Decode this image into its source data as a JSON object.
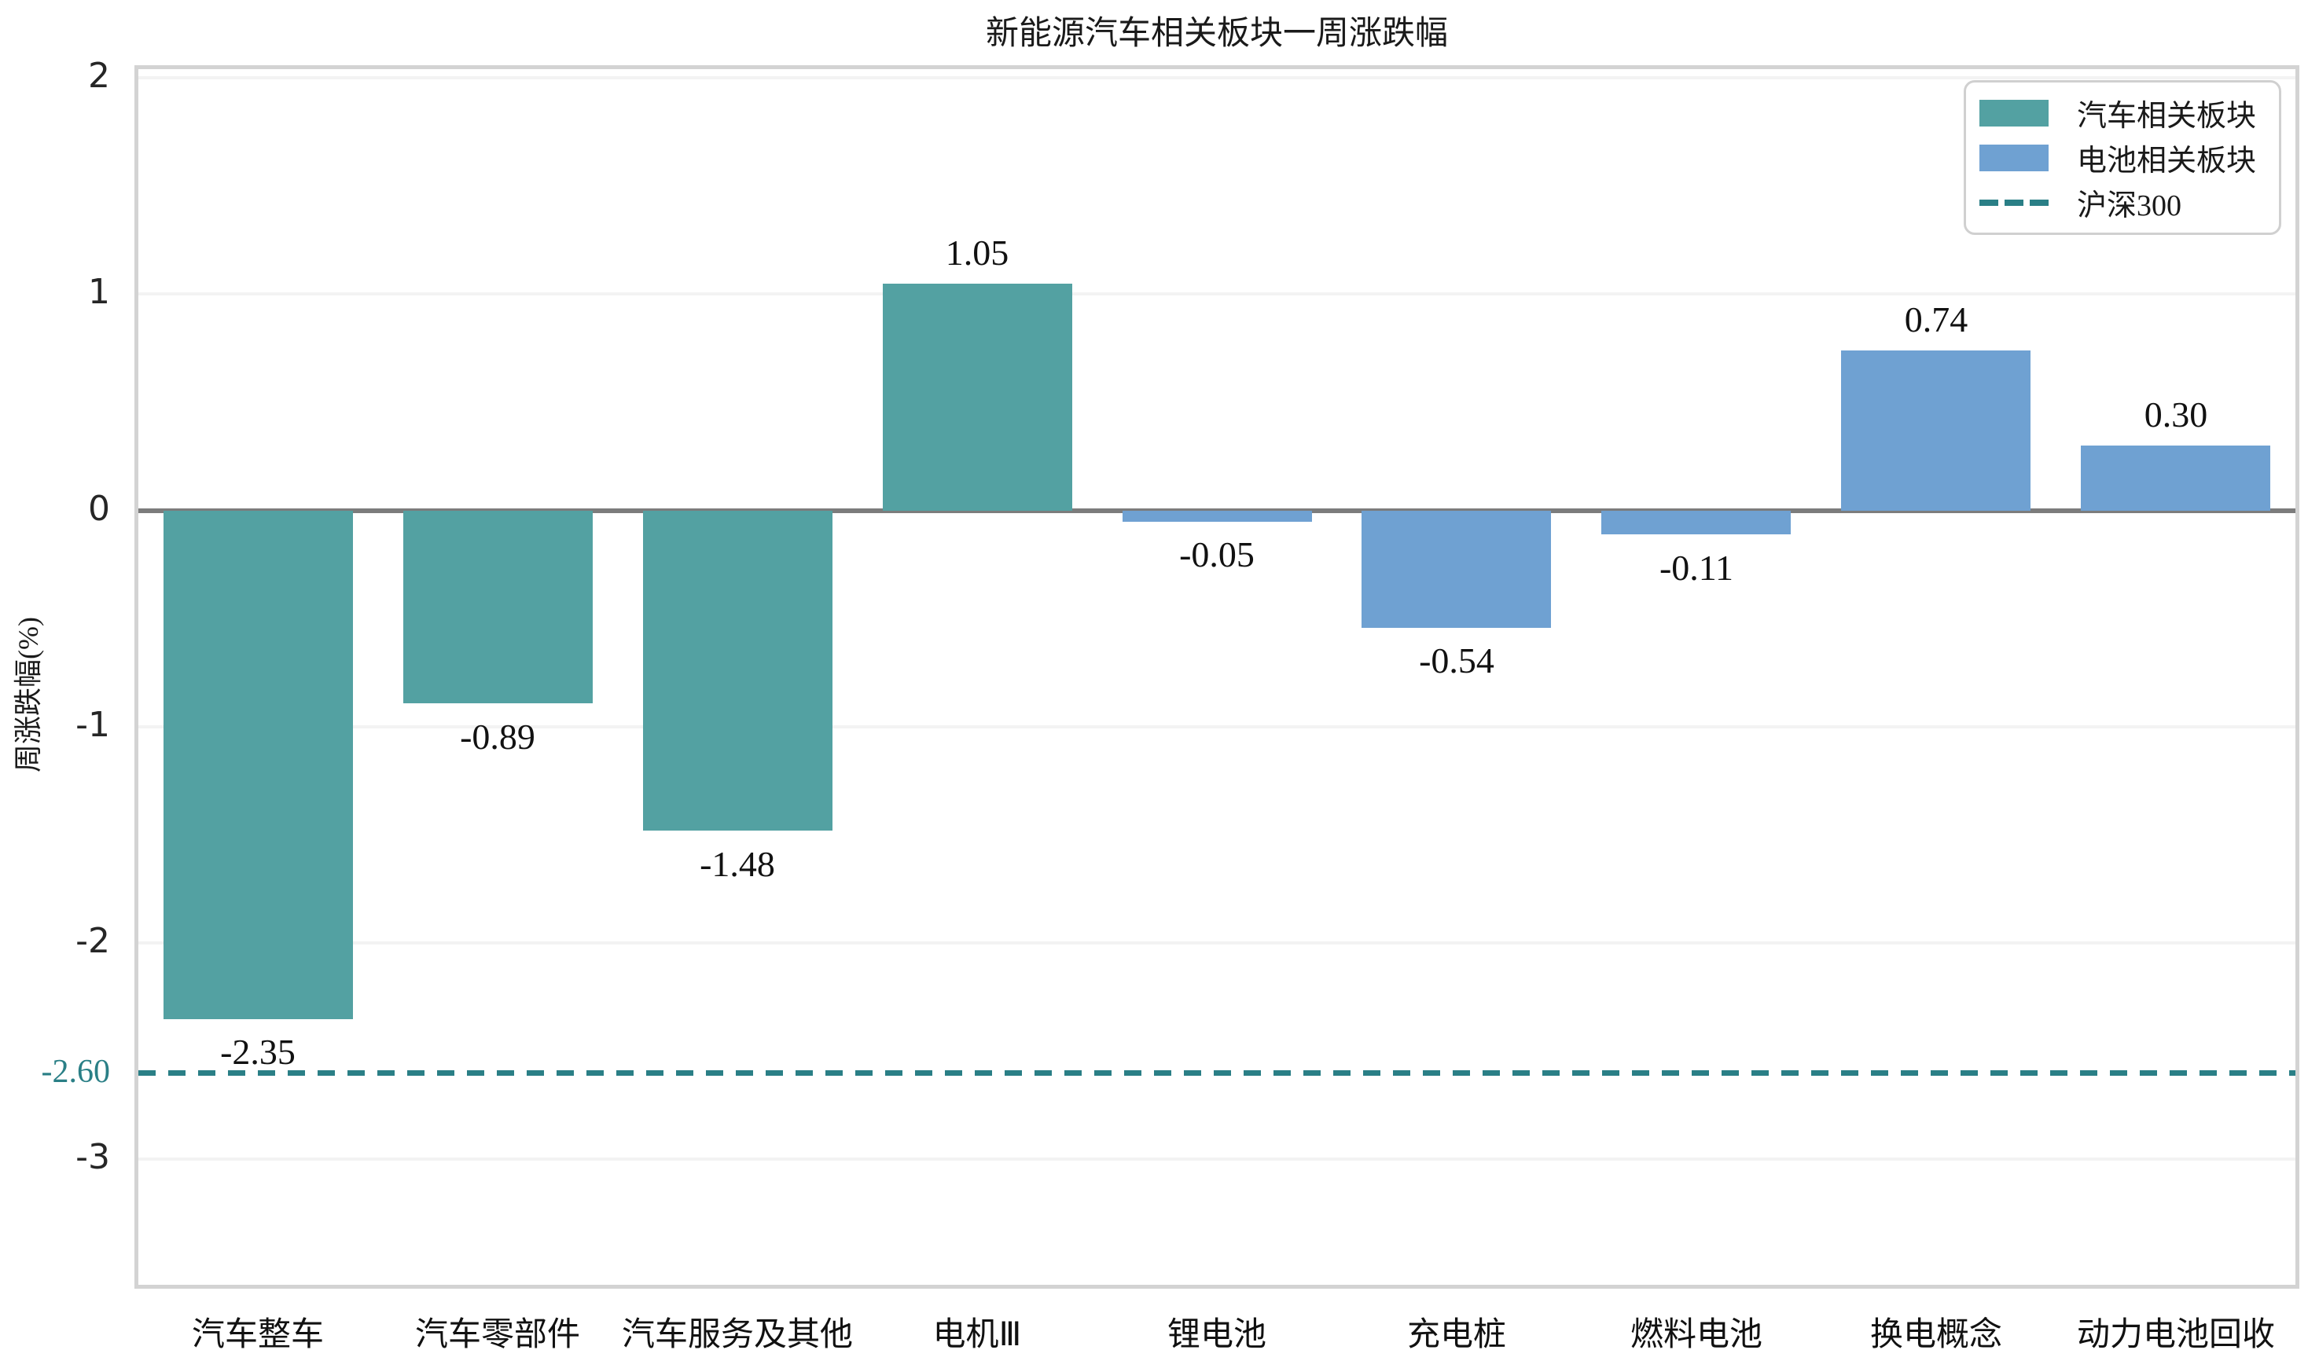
{
  "chart_data": {
    "type": "bar",
    "title": "新能源汽车相关板块一周涨跌幅",
    "xlabel": "",
    "ylabel": "周涨跌幅(%)",
    "categories": [
      "汽车整车",
      "汽车零部件",
      "汽车服务及其他",
      "电机Ⅲ",
      "锂电池",
      "充电桩",
      "燃料电池",
      "换电概念",
      "动力电池回收"
    ],
    "values": [
      -2.35,
      -0.89,
      -1.48,
      1.05,
      -0.05,
      -0.54,
      -0.11,
      0.74,
      0.3
    ],
    "bar_groups": [
      0,
      0,
      0,
      0,
      1,
      1,
      1,
      1,
      1
    ],
    "series": [
      {
        "name": "汽车相关板块",
        "color": "#53a1a2"
      },
      {
        "name": "电池相关板块",
        "color": "#6fa1d2"
      }
    ],
    "reference_line": {
      "name": "沪深300",
      "value": -2.6,
      "display": "-2.60",
      "color": "#2a7f86",
      "style": "dashed"
    },
    "yticks": [
      2,
      1,
      0,
      -1,
      -2,
      -3
    ],
    "ylim": [
      -3.58,
      2.04
    ],
    "grid": true,
    "legend_position": "upper right",
    "legend": {
      "entries": [
        {
          "label": "汽车相关板块",
          "swatch": "patch",
          "color": "#53a1a2"
        },
        {
          "label": "电池相关板块",
          "swatch": "patch",
          "color": "#6fa1d2"
        },
        {
          "label": "沪深300",
          "swatch": "dashed-line",
          "color": "#2a7f86"
        }
      ]
    },
    "colors": {
      "zero_line": "#7c7c7c",
      "frame": "#d3d3d3",
      "gridline": "#f3f3f3",
      "text": "#1a1a1a"
    }
  }
}
